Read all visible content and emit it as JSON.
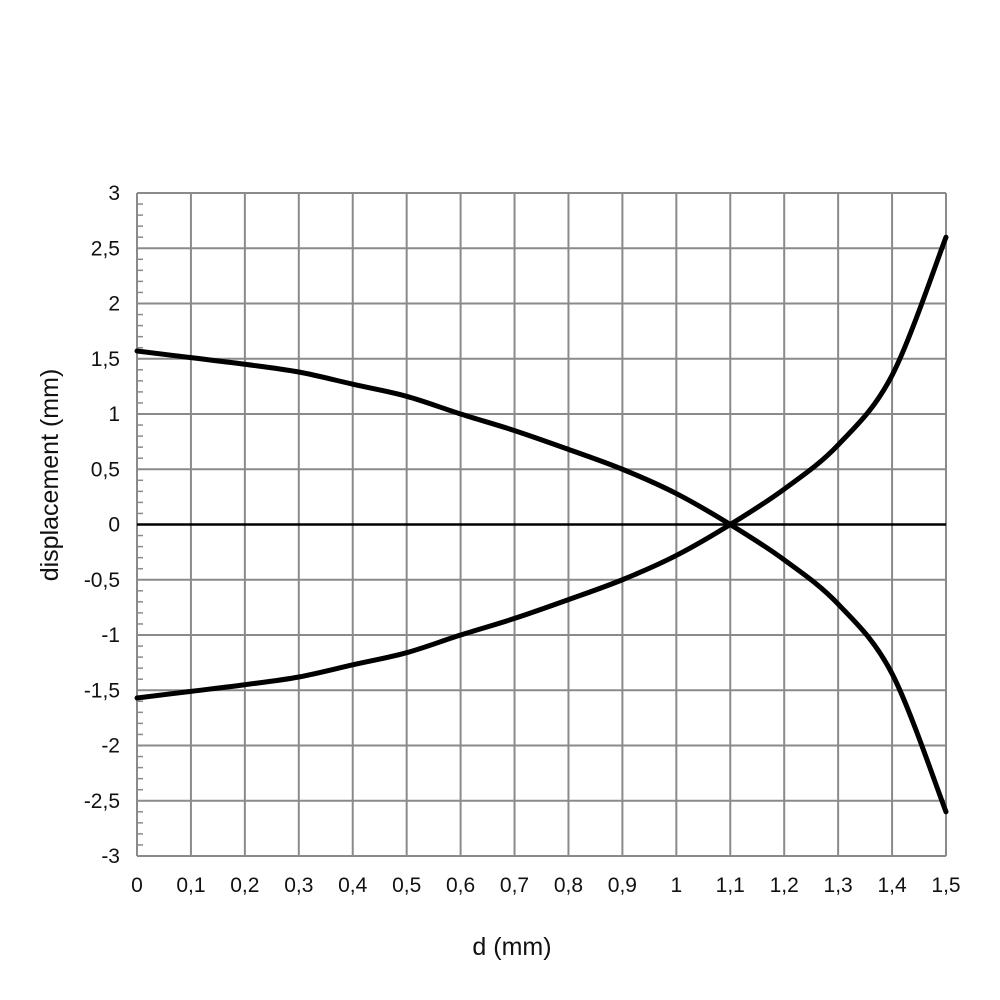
{
  "chart_data": {
    "type": "line",
    "title": "",
    "xlabel": "d (mm)",
    "ylabel": "displacement (mm)",
    "xlim": [
      0,
      1.5
    ],
    "ylim": [
      -3,
      3
    ],
    "grid": true,
    "legend": "none",
    "x_ticks": [
      "0",
      "0,1",
      "0,2",
      "0,3",
      "0,4",
      "0,5",
      "0,6",
      "0,7",
      "0,8",
      "0,9",
      "1",
      "1,1",
      "1,2",
      "1,3",
      "1,4",
      "1,5"
    ],
    "y_ticks": [
      "3",
      "2,5",
      "2",
      "1,5",
      "1",
      "0,5",
      "0",
      "-0,5",
      "-1",
      "-1,5",
      "-2",
      "-2,5",
      "-3"
    ],
    "series": [
      {
        "color": "#000000",
        "x": [
          0,
          0.1,
          0.2,
          0.3,
          0.4,
          0.5,
          0.6,
          0.7,
          0.8,
          0.9,
          1.0,
          1.1,
          1.2,
          1.3,
          1.4,
          1.5
        ],
        "values": [
          1.57,
          1.51,
          1.45,
          1.38,
          1.27,
          1.16,
          1.0,
          0.85,
          0.68,
          0.5,
          0.28,
          0.0,
          -0.32,
          -0.72,
          -1.35,
          -2.6
        ]
      },
      {
        "color": "#000000",
        "x": [
          0,
          0.1,
          0.2,
          0.3,
          0.4,
          0.5,
          0.6,
          0.7,
          0.8,
          0.9,
          1.0,
          1.1,
          1.2,
          1.3,
          1.4,
          1.5
        ],
        "values": [
          -1.57,
          -1.51,
          -1.45,
          -1.38,
          -1.27,
          -1.16,
          -1.0,
          -0.85,
          -0.68,
          -0.5,
          -0.28,
          0.0,
          0.32,
          0.72,
          1.35,
          2.6
        ]
      }
    ]
  }
}
